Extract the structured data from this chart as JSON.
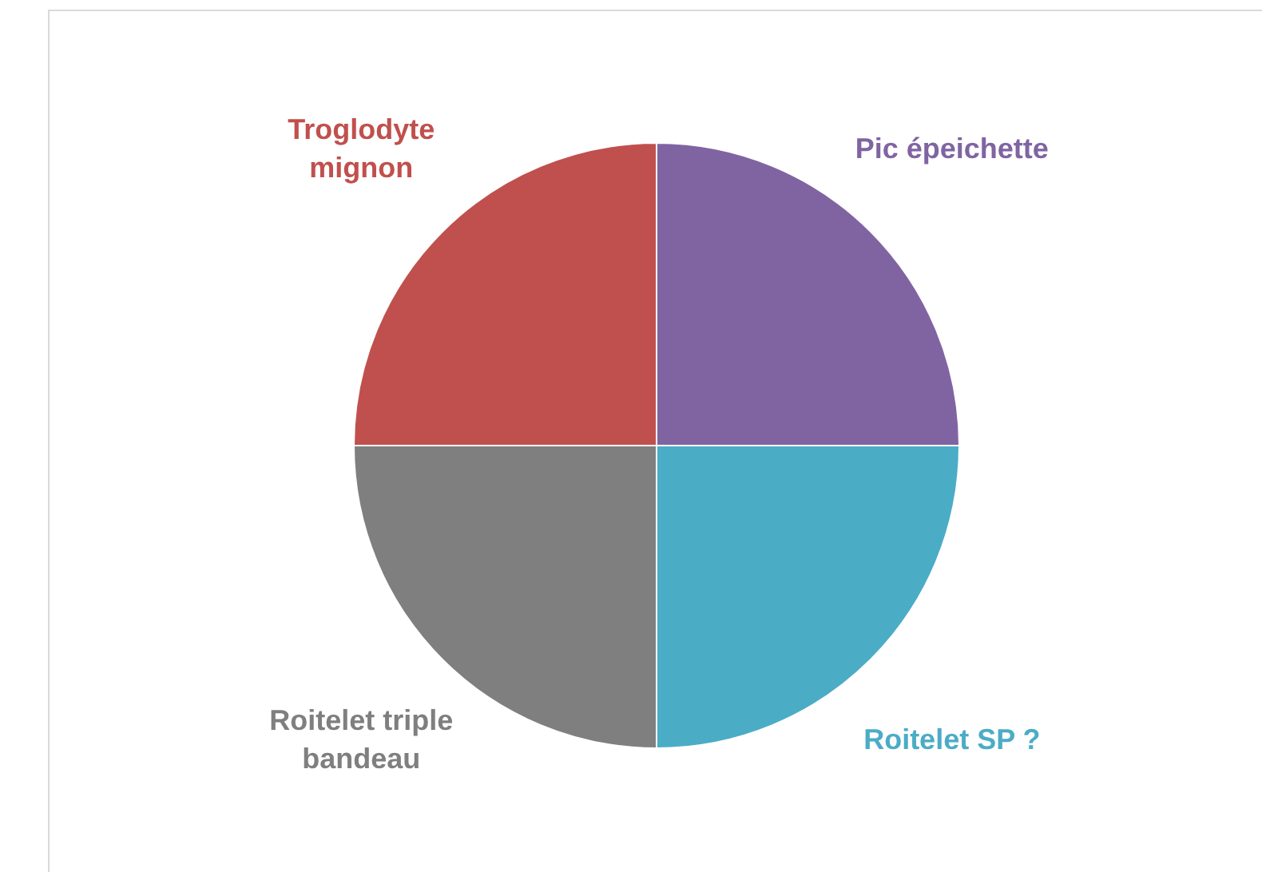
{
  "chart_data": {
    "type": "pie",
    "categories": [
      "Pic épeichette",
      "Roitelet SP ?",
      "Roitelet triple bandeau",
      "Troglodyte mignon"
    ],
    "values": [
      25,
      25,
      25,
      25
    ],
    "colors": [
      "#8064a2",
      "#4bacc6",
      "#7f7f7f",
      "#c0504d"
    ],
    "legend": false
  }
}
